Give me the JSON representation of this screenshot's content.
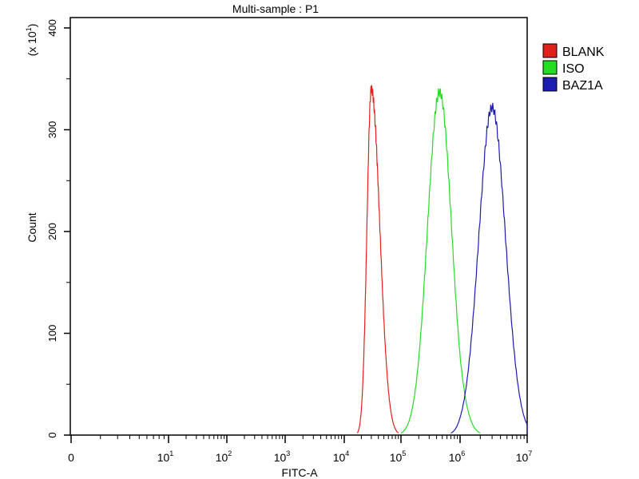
{
  "chart_data": {
    "type": "line",
    "title": "Multi-sample : P1",
    "xlabel": "FITC-A",
    "ylabel": "Count",
    "y_multiplier": "(x 10",
    "y_multiplier_exp": "1",
    "y_multiplier_close": ")",
    "xscale": "log",
    "x_tick_labels": [
      {
        "base": "0",
        "exp": ""
      },
      {
        "base": "10",
        "exp": "1"
      },
      {
        "base": "10",
        "exp": "2"
      },
      {
        "base": "10",
        "exp": "3"
      },
      {
        "base": "10",
        "exp": "4"
      },
      {
        "base": "10",
        "exp": "5"
      },
      {
        "base": "10",
        "exp": "6"
      },
      {
        "base": "10",
        "exp": "7"
      }
    ],
    "y_ticks": [
      "0",
      "100",
      "200",
      "300",
      "400"
    ],
    "ylim": [
      0,
      400
    ],
    "grid": false,
    "legend_position": "right",
    "series": [
      {
        "name": "BLANK",
        "color": "#e0201c",
        "peak_x": 30000,
        "peak_count": 340,
        "x_range": [
          17000,
          90000
        ]
      },
      {
        "name": "ISO",
        "color": "#22dd22",
        "peak_x": 450000,
        "peak_count": 337,
        "x_range": [
          100000,
          2000000
        ]
      },
      {
        "name": "BAZ1A",
        "color": "#1c1cb0",
        "peak_x": 3000000,
        "peak_count": 322,
        "x_range": [
          700000,
          13000000
        ]
      }
    ]
  }
}
